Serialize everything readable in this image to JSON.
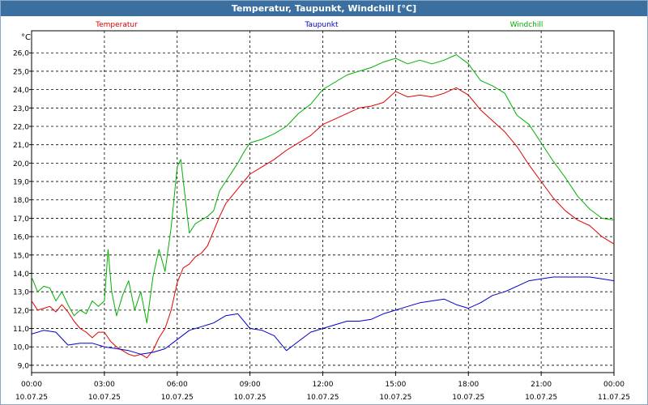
{
  "window": {
    "title": "Temperatur, Taupunkt, Windchill [°C]"
  },
  "chart_data": {
    "type": "line",
    "title": "Temperatur, Taupunkt, Windchill [°C]",
    "ylabel": "°C",
    "ylim": [
      8.6,
      27.2
    ],
    "yticks": [
      "26,0",
      "25,0",
      "24,0",
      "23,0",
      "22,0",
      "21,0",
      "20,0",
      "19,0",
      "18,0",
      "17,0",
      "16,0",
      "15,0",
      "14,0",
      "13,0",
      "12,0",
      "11,0",
      "10,0",
      "9,0"
    ],
    "xlim": [
      0,
      24
    ],
    "xticks": [
      {
        "time": "00:00",
        "date": "10.07.25"
      },
      {
        "time": "03:00",
        "date": "10.07.25"
      },
      {
        "time": "06:00",
        "date": "10.07.25"
      },
      {
        "time": "09:00",
        "date": "10.07.25"
      },
      {
        "time": "12:00",
        "date": "10.07.25"
      },
      {
        "time": "15:00",
        "date": "10.07.25"
      },
      {
        "time": "18:00",
        "date": "10.07.25"
      },
      {
        "time": "21:00",
        "date": "10.07.25"
      },
      {
        "time": "00:00",
        "date": "11.07.25"
      }
    ],
    "grid": true,
    "series": [
      {
        "name": "Temperatur",
        "color": "#e00000",
        "x": [
          0,
          0.25,
          0.5,
          0.75,
          1,
          1.25,
          1.5,
          1.75,
          2,
          2.25,
          2.5,
          2.75,
          3,
          3.25,
          3.5,
          3.75,
          4,
          4.25,
          4.5,
          4.75,
          5,
          5.25,
          5.5,
          5.75,
          6,
          6.25,
          6.5,
          6.75,
          7,
          7.25,
          7.5,
          7.75,
          8,
          8.5,
          9,
          9.5,
          10,
          10.5,
          11,
          11.5,
          12,
          12.5,
          13,
          13.5,
          14,
          14.5,
          15,
          15.5,
          16,
          16.5,
          17,
          17.5,
          18,
          18.5,
          19,
          19.5,
          20,
          20.5,
          21,
          21.5,
          22,
          22.5,
          23,
          23.5,
          24
        ],
        "values": [
          12.5,
          12.0,
          12.1,
          12.2,
          11.9,
          12.3,
          11.9,
          11.4,
          11.0,
          10.8,
          10.5,
          10.8,
          10.8,
          10.3,
          10.0,
          9.8,
          9.6,
          9.5,
          9.6,
          9.4,
          9.8,
          10.5,
          11.0,
          12.0,
          13.5,
          14.3,
          14.5,
          14.9,
          15.1,
          15.5,
          16.3,
          17.1,
          17.8,
          18.6,
          19.4,
          19.8,
          20.2,
          20.7,
          21.1,
          21.5,
          22.1,
          22.4,
          22.7,
          23.0,
          23.1,
          23.3,
          23.9,
          23.6,
          23.7,
          23.6,
          23.8,
          24.1,
          23.7,
          22.9,
          22.3,
          21.7,
          20.9,
          19.9,
          19.0,
          18.1,
          17.4,
          16.9,
          16.6,
          16.0,
          15.6
        ]
      },
      {
        "name": "Taupunkt",
        "color": "#0000cc",
        "x": [
          0,
          0.5,
          1,
          1.5,
          2,
          2.5,
          3,
          3.5,
          4,
          4.5,
          5,
          5.5,
          6,
          6.5,
          7,
          7.5,
          8,
          8.5,
          9,
          9.5,
          10,
          10.5,
          11,
          11.5,
          12,
          12.5,
          13,
          13.5,
          14,
          14.5,
          15,
          15.5,
          16,
          16.5,
          17,
          17.5,
          18,
          18.5,
          19,
          19.5,
          20,
          20.5,
          21,
          21.5,
          22,
          22.5,
          23,
          23.5,
          24
        ],
        "values": [
          10.7,
          10.9,
          10.8,
          10.1,
          10.2,
          10.2,
          10.0,
          9.9,
          9.8,
          9.6,
          9.7,
          9.9,
          10.4,
          10.9,
          11.1,
          11.3,
          11.7,
          11.8,
          11.0,
          10.9,
          10.6,
          9.8,
          10.3,
          10.8,
          11.0,
          11.2,
          11.4,
          11.4,
          11.5,
          11.8,
          12.0,
          12.2,
          12.4,
          12.5,
          12.6,
          12.3,
          12.1,
          12.4,
          12.8,
          13.0,
          13.3,
          13.6,
          13.7,
          13.8,
          13.8,
          13.8,
          13.8,
          13.7,
          13.6
        ]
      },
      {
        "name": "Windchill",
        "color": "#00b000",
        "x": [
          0,
          0.25,
          0.5,
          0.75,
          1,
          1.25,
          1.5,
          1.75,
          2,
          2.25,
          2.5,
          2.75,
          3,
          3.15,
          3.3,
          3.5,
          3.75,
          4,
          4.25,
          4.5,
          4.75,
          5,
          5.25,
          5.5,
          5.75,
          6,
          6.15,
          6.3,
          6.5,
          6.75,
          7,
          7.25,
          7.5,
          7.75,
          8,
          8.25,
          8.5,
          8.75,
          9,
          9.5,
          10,
          10.5,
          11,
          11.5,
          12,
          12.5,
          13,
          13.5,
          14,
          14.5,
          15,
          15.5,
          16,
          16.5,
          17,
          17.5,
          18,
          18.5,
          19,
          19.5,
          20,
          20.5,
          21,
          21.5,
          22,
          22.5,
          23,
          23.5,
          24
        ],
        "values": [
          13.8,
          13.0,
          13.3,
          13.2,
          12.5,
          13.0,
          12.3,
          11.7,
          12.0,
          11.8,
          12.5,
          12.2,
          12.5,
          15.3,
          13.0,
          11.7,
          12.8,
          13.6,
          12.0,
          13.0,
          11.3,
          13.8,
          15.3,
          14.1,
          16.5,
          19.8,
          20.2,
          18.5,
          16.2,
          16.7,
          16.9,
          17.1,
          17.4,
          18.5,
          19.0,
          19.5,
          20.0,
          20.6,
          21.1,
          21.3,
          21.6,
          22.0,
          22.7,
          23.2,
          24.0,
          24.4,
          24.8,
          25.0,
          25.2,
          25.5,
          25.7,
          25.4,
          25.6,
          25.4,
          25.6,
          25.9,
          25.4,
          24.5,
          24.2,
          23.8,
          22.6,
          22.1,
          21.1,
          20.1,
          19.2,
          18.2,
          17.5,
          17.0,
          16.9
        ]
      }
    ]
  }
}
